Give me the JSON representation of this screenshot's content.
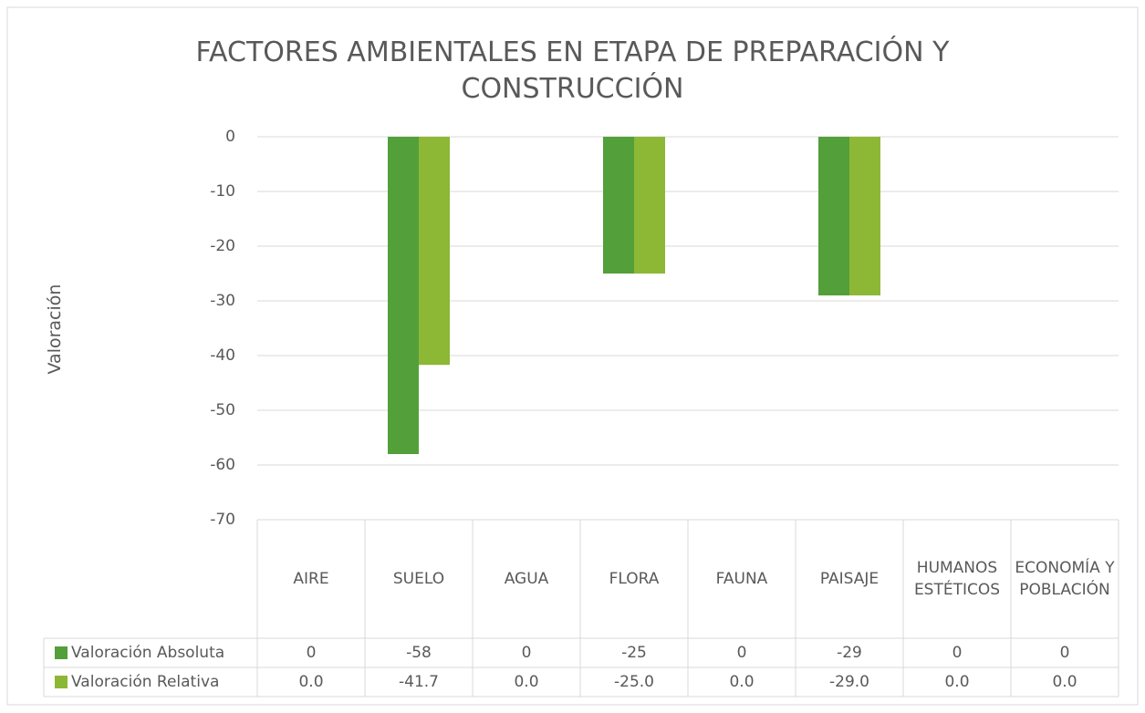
{
  "chart_data": {
    "type": "bar",
    "title": "FACTORES AMBIENTALES EN ETAPA DE PREPARACIÓN Y CONSTRUCCIÓN",
    "y_label": "Valoración",
    "categories": [
      "AIRE",
      "SUELO",
      "AGUA",
      "FLORA",
      "FAUNA",
      "PAISAJE",
      "HUMANOS ESTÉTICOS",
      "ECONOMÍA Y POBLACIÓN"
    ],
    "series": [
      {
        "name": "Valoración Absoluta",
        "color": "#539f3a",
        "values": [
          0,
          -58,
          0,
          -25,
          0,
          -29,
          0,
          0
        ]
      },
      {
        "name": "Valoración Relativa",
        "color": "#8cb836",
        "values": [
          0,
          -41.7,
          0,
          -25.0,
          0,
          -29.0,
          0,
          0
        ],
        "value_labels": [
          "0.0",
          "-41.7",
          "0.0",
          "-25.0",
          "0.0",
          "-29.0",
          "0.0",
          "0.0"
        ]
      }
    ],
    "ylim": [
      -70,
      0
    ],
    "yticks": [
      0,
      -10,
      -20,
      -30,
      -40,
      -50,
      -60,
      -70
    ],
    "grid": true
  }
}
